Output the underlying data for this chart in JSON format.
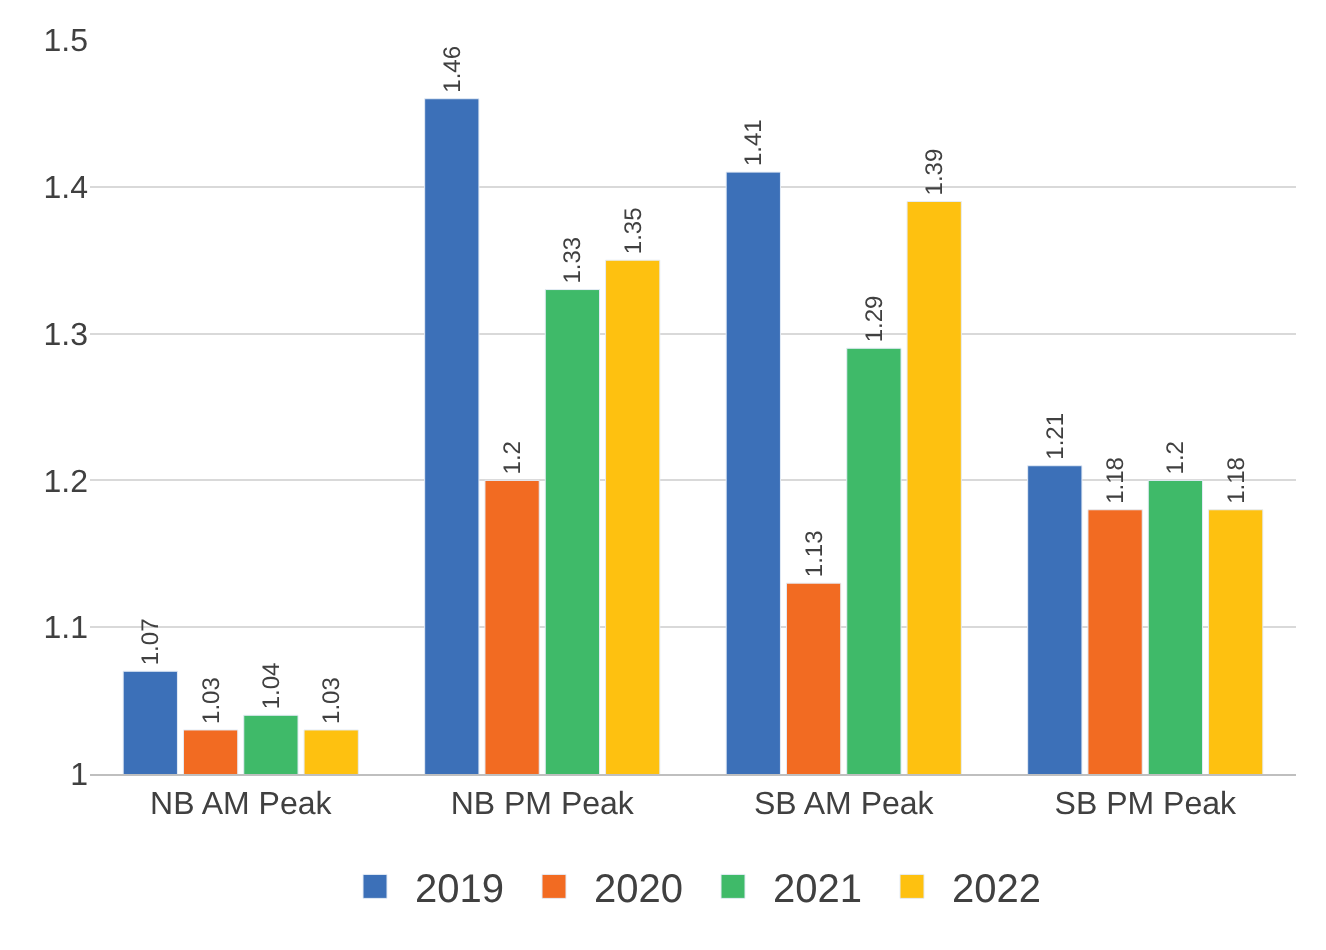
{
  "chart_data": {
    "type": "bar",
    "categories": [
      "NB AM Peak",
      "NB PM Peak",
      "SB AM Peak",
      "SB PM Peak"
    ],
    "series": [
      {
        "name": "2019",
        "color": "#3c70b8",
        "values": [
          1.07,
          1.46,
          1.41,
          1.21
        ]
      },
      {
        "name": "2020",
        "color": "#f26b22",
        "values": [
          1.03,
          1.2,
          1.13,
          1.18
        ]
      },
      {
        "name": "2021",
        "color": "#3fba69",
        "values": [
          1.04,
          1.33,
          1.29,
          1.2
        ]
      },
      {
        "name": "2022",
        "color": "#fec110",
        "values": [
          1.03,
          1.35,
          1.39,
          1.18
        ]
      }
    ],
    "ylim": [
      1,
      1.5
    ],
    "yticks": [
      1,
      1.1,
      1.2,
      1.3,
      1.4,
      1.5
    ],
    "grid": "y",
    "legend": "bottom",
    "data_labels": true
  }
}
